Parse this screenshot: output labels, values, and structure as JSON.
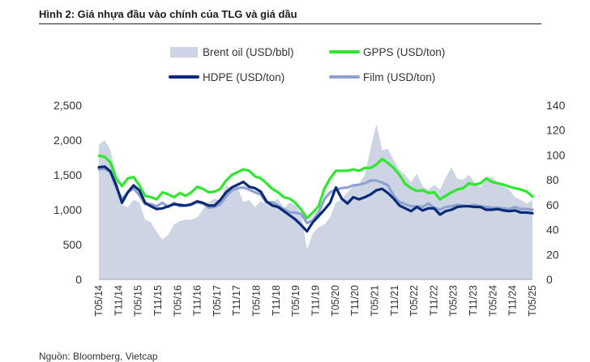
{
  "figure": {
    "title": "Hình 2: Giá nhựa đầu vào chính của TLG và giá dầu",
    "source": "Nguồn: Bloomberg, Vietcap"
  },
  "colors": {
    "brent": "#cdd4e3",
    "gpps": "#2ee82e",
    "hdpe": "#0b2b78",
    "film": "#8fa2cf"
  },
  "chart_data": {
    "type": "line",
    "title": "Hình 2: Giá nhựa đầu vào chính của TLG và giá dầu",
    "xlabel": "",
    "ylabel": "",
    "ylim": [
      0,
      2500
    ],
    "y2lim": [
      0,
      140
    ],
    "yticks": [
      "2,500",
      "2,000",
      "1,500",
      "1,000",
      "500",
      "0"
    ],
    "y2ticks": [
      "140",
      "120",
      "100",
      "80",
      "60",
      "40",
      "20",
      "0"
    ],
    "x_tick_labels": [
      "T05/14",
      "T11/14",
      "T05/15",
      "T11/15",
      "T05/16",
      "T11/16",
      "T05/17",
      "T11/17",
      "T05/18",
      "T11/18",
      "T05/19",
      "T11/19",
      "T05/20",
      "T11/20",
      "T05/21",
      "T11/21",
      "T05/22",
      "T11/22",
      "T05/23",
      "T11/23",
      "T05/24",
      "T11/24",
      "T05/25"
    ],
    "legend": [
      {
        "key": "brent",
        "label": "Brent oil (USD/bbl)",
        "kind": "area"
      },
      {
        "key": "gpps",
        "label": "GPPS (USD/ton)",
        "kind": "line"
      },
      {
        "key": "hdpe",
        "label": "HDPE (USD/ton)",
        "kind": "line"
      },
      {
        "key": "film",
        "label": "Film (USD/ton)",
        "kind": "line"
      }
    ],
    "series": [
      {
        "name": "Brent oil (USD/bbl)",
        "axis": "right",
        "type": "area",
        "values": [
          108,
          112,
          104,
          84,
          60,
          58,
          64,
          62,
          48,
          46,
          38,
          32,
          36,
          44,
          47,
          48,
          48,
          50,
          56,
          62,
          65,
          63,
          76,
          72,
          74,
          62,
          64,
          58,
          63,
          60,
          62,
          65,
          57,
          62,
          60,
          53,
          24,
          37,
          42,
          44,
          50,
          62,
          64,
          70,
          75,
          77,
          84,
          105,
          125,
          104,
          105,
          96,
          88,
          84,
          78,
          85,
          75,
          72,
          76,
          72,
          82,
          90,
          81,
          80,
          84,
          78,
          74,
          82,
          82,
          78,
          75,
          72,
          66,
          64,
          61,
          64
        ]
      },
      {
        "name": "GPPS (USD/ton)",
        "axis": "left",
        "type": "line",
        "values": [
          1775,
          1760,
          1680,
          1450,
          1340,
          1450,
          1470,
          1350,
          1200,
          1180,
          1150,
          1250,
          1220,
          1180,
          1240,
          1200,
          1250,
          1330,
          1300,
          1250,
          1260,
          1300,
          1420,
          1500,
          1540,
          1580,
          1560,
          1480,
          1450,
          1380,
          1300,
          1250,
          1180,
          1160,
          1100,
          1000,
          880,
          960,
          1050,
          1300,
          1450,
          1560,
          1560,
          1560,
          1580,
          1560,
          1600,
          1600,
          1650,
          1730,
          1670,
          1600,
          1500,
          1370,
          1310,
          1270,
          1280,
          1240,
          1250,
          1150,
          1200,
          1250,
          1290,
          1310,
          1380,
          1360,
          1380,
          1450,
          1400,
          1380,
          1360,
          1330,
          1310,
          1290,
          1260,
          1190
        ]
      },
      {
        "name": "HDPE (USD/ton)",
        "axis": "left",
        "type": "line",
        "values": [
          1610,
          1620,
          1550,
          1350,
          1100,
          1250,
          1350,
          1280,
          1100,
          1050,
          1010,
          1020,
          1050,
          1080,
          1070,
          1060,
          1080,
          1120,
          1100,
          1060,
          1060,
          1140,
          1250,
          1320,
          1360,
          1400,
          1330,
          1310,
          1260,
          1120,
          1060,
          1040,
          980,
          920,
          860,
          780,
          690,
          820,
          910,
          1000,
          1100,
          1320,
          1160,
          1090,
          1180,
          1150,
          1180,
          1220,
          1280,
          1300,
          1240,
          1160,
          1060,
          1020,
          980,
          1040,
          990,
          1020,
          1020,
          930,
          980,
          1000,
          1040,
          1050,
          1050,
          1040,
          1040,
          1000,
          1000,
          1010,
          990,
          980,
          990,
          960,
          960,
          950
        ]
      },
      {
        "name": "Film (USD/ton)",
        "axis": "left",
        "type": "line",
        "values": [
          1580,
          1590,
          1540,
          1320,
          1150,
          1250,
          1310,
          1210,
          1080,
          1080,
          1050,
          1100,
          1040,
          1100,
          1050,
          1060,
          1070,
          1110,
          1090,
          1030,
          1040,
          1080,
          1190,
          1280,
          1310,
          1320,
          1290,
          1250,
          1220,
          1100,
          1110,
          1060,
          1010,
          960,
          960,
          940,
          810,
          850,
          960,
          1150,
          1250,
          1290,
          1310,
          1320,
          1350,
          1360,
          1380,
          1420,
          1420,
          1390,
          1350,
          1200,
          1110,
          1080,
          1050,
          1050,
          1040,
          1090,
          1030,
          1000,
          1040,
          1050,
          1070,
          1060,
          1050,
          1070,
          1050,
          1040,
          1030,
          1030,
          1020,
          1010,
          1040,
          1010,
          1010,
          1000
        ]
      }
    ]
  }
}
